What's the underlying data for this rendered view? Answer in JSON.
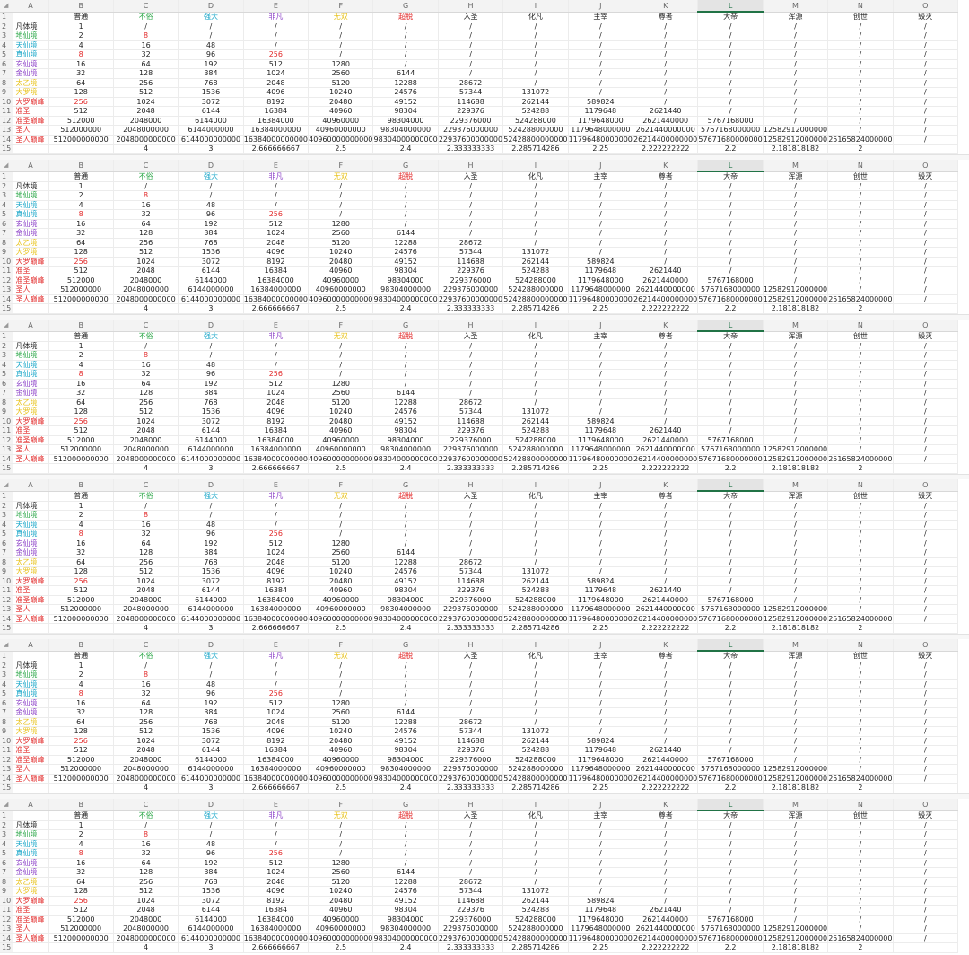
{
  "spreadsheet": {
    "corner_symbol": "◢",
    "selected_column": "L",
    "columns": [
      "A",
      "B",
      "C",
      "D",
      "E",
      "F",
      "G",
      "H",
      "I",
      "J",
      "K",
      "L",
      "M",
      "N",
      "O"
    ],
    "row_numbers": [
      "1",
      "2",
      "3",
      "4",
      "5",
      "6",
      "7",
      "8",
      "9",
      "10",
      "11",
      "12",
      "13",
      "14",
      "15"
    ],
    "header_row": [
      {
        "text": "",
        "color": "#222222"
      },
      {
        "text": "普通",
        "color": "#222222"
      },
      {
        "text": "不俗",
        "color": "#2ea84a"
      },
      {
        "text": "强大",
        "color": "#1aa7c9"
      },
      {
        "text": "非凡",
        "color": "#8e44c9"
      },
      {
        "text": "无双",
        "color": "#e8c31c"
      },
      {
        "text": "超脱",
        "color": "#e22a2a"
      },
      {
        "text": "入圣",
        "color": "#222222"
      },
      {
        "text": "化凡",
        "color": "#222222"
      },
      {
        "text": "主宰",
        "color": "#222222"
      },
      {
        "text": "尊者",
        "color": "#222222"
      },
      {
        "text": "大帝",
        "color": "#222222"
      },
      {
        "text": "浑源",
        "color": "#222222"
      },
      {
        "text": "创世",
        "color": "#222222"
      },
      {
        "text": "毁灭",
        "color": "#222222"
      }
    ],
    "rows": [
      {
        "label": "凡体境",
        "label_color": "#222222",
        "cells": [
          "1",
          "/",
          "/",
          "/",
          "/",
          "/",
          "/",
          "/",
          "/",
          "/",
          "/",
          "/",
          "/",
          "/"
        ]
      },
      {
        "label": "地仙境",
        "label_color": "#2ea84a",
        "cells": [
          "2",
          "8",
          "/",
          "/",
          "/",
          "/",
          "/",
          "/",
          "/",
          "/",
          "/",
          "/",
          "/",
          "/"
        ]
      },
      {
        "label": "天仙境",
        "label_color": "#1aa7c9",
        "cells": [
          "4",
          "16",
          "48",
          "/",
          "/",
          "/",
          "/",
          "/",
          "/",
          "/",
          "/",
          "/",
          "/",
          "/"
        ]
      },
      {
        "label": "真仙境",
        "label_color": "#1aa7c9",
        "cells": [
          "8",
          "32",
          "96",
          "256",
          "/",
          "/",
          "/",
          "/",
          "/",
          "/",
          "/",
          "/",
          "/",
          "/"
        ]
      },
      {
        "label": "玄仙境",
        "label_color": "#8e44c9",
        "cells": [
          "16",
          "64",
          "192",
          "512",
          "1280",
          "/",
          "/",
          "/",
          "/",
          "/",
          "/",
          "/",
          "/",
          "/"
        ]
      },
      {
        "label": "金仙境",
        "label_color": "#8e44c9",
        "cells": [
          "32",
          "128",
          "384",
          "1024",
          "2560",
          "6144",
          "/",
          "/",
          "/",
          "/",
          "/",
          "/",
          "/",
          "/"
        ]
      },
      {
        "label": "太乙境",
        "label_color": "#e8c31c",
        "cells": [
          "64",
          "256",
          "768",
          "2048",
          "5120",
          "12288",
          "28672",
          "/",
          "/",
          "/",
          "/",
          "/",
          "/",
          "/"
        ]
      },
      {
        "label": "大罗境",
        "label_color": "#e8c31c",
        "cells": [
          "128",
          "512",
          "1536",
          "4096",
          "10240",
          "24576",
          "57344",
          "131072",
          "/",
          "/",
          "/",
          "/",
          "/",
          "/"
        ]
      },
      {
        "label": "大罗巅峰",
        "label_color": "#e22a2a",
        "cells": [
          "256",
          "1024",
          "3072",
          "8192",
          "20480",
          "49152",
          "114688",
          "262144",
          "589824",
          "/",
          "/",
          "/",
          "/",
          "/"
        ]
      },
      {
        "label": "准圣",
        "label_color": "#e22a2a",
        "cells": [
          "512",
          "2048",
          "6144",
          "16384",
          "40960",
          "98304",
          "229376",
          "524288",
          "1179648",
          "2621440",
          "/",
          "/",
          "/",
          "/"
        ]
      },
      {
        "label": "准圣巅峰",
        "label_color": "#e22a2a",
        "cells": [
          "512000",
          "2048000",
          "6144000",
          "16384000",
          "40960000",
          "98304000",
          "229376000",
          "524288000",
          "1179648000",
          "2621440000",
          "5767168000",
          "/",
          "/",
          "/"
        ]
      },
      {
        "label": "圣人",
        "label_color": "#e22a2a",
        "cells": [
          "512000000",
          "2048000000",
          "6144000000",
          "16384000000",
          "40960000000",
          "98304000000",
          "229376000000",
          "524288000000",
          "1179648000000",
          "2621440000000",
          "5767168000000",
          "12582912000000",
          "/",
          "/"
        ]
      },
      {
        "label": "圣人巅峰",
        "label_color": "#e22a2a",
        "cells": [
          "512000000000",
          "2048000000000",
          "6144000000000",
          "16384000000000",
          "40960000000000",
          "98304000000000",
          "229376000000000",
          "524288000000000",
          "1179648000000000",
          "2621440000000000",
          "5767168000000000",
          "12582912000000000",
          "25165824000000000",
          "/"
        ]
      },
      {
        "label": "",
        "label_color": "#222222",
        "cells": [
          "",
          "4",
          "3",
          "2.666666667",
          "2.5",
          "2.4",
          "2.333333333",
          "2.285714286",
          "2.25",
          "2.222222222",
          "2.2",
          "2.181818182",
          "2",
          ""
        ]
      }
    ]
  }
}
